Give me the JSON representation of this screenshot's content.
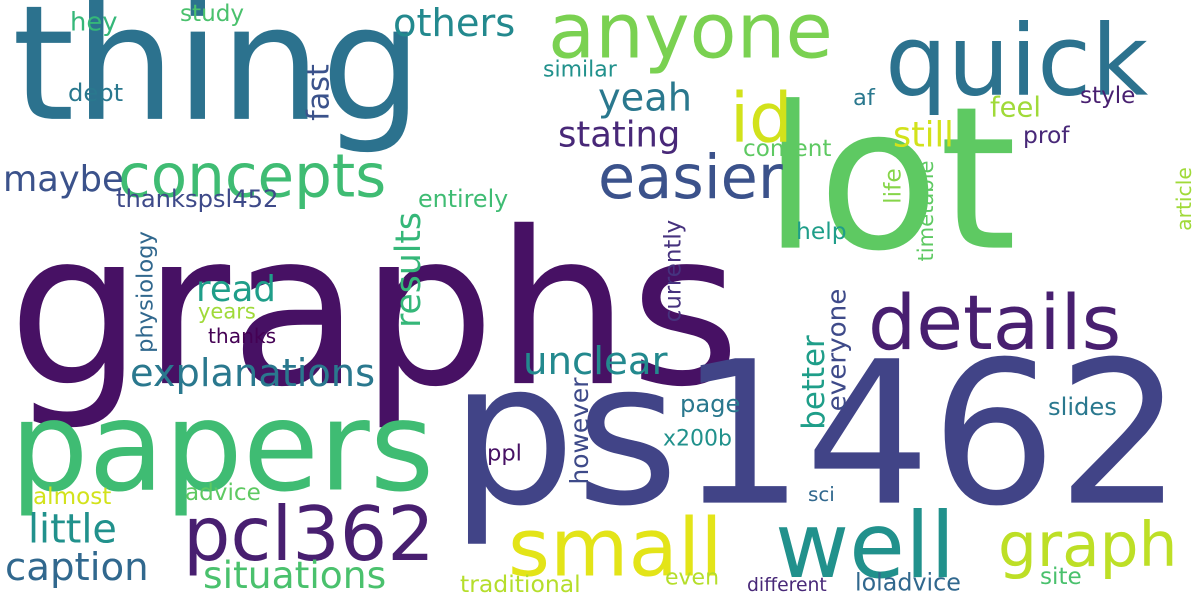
{
  "words": [
    {
      "id": "graphs",
      "text": "graphs",
      "color": "#471164"
    },
    {
      "id": "lot",
      "text": "lot",
      "color": "#5ec962"
    },
    {
      "id": "ps1462",
      "text": "ps1462",
      "color": "#414487"
    },
    {
      "id": "thing",
      "text": "thing",
      "color": "#2c728e"
    },
    {
      "id": "papers",
      "text": "papers",
      "color": "#3fbc73"
    },
    {
      "id": "quick",
      "text": "quick",
      "color": "#2c728e"
    },
    {
      "id": "anyone",
      "text": "anyone",
      "color": "#7ad151"
    },
    {
      "id": "details",
      "text": "details",
      "color": "#481f70"
    },
    {
      "id": "pcl362",
      "text": "pcl362",
      "color": "#481f70"
    },
    {
      "id": "well",
      "text": "well",
      "color": "#21918c"
    },
    {
      "id": "small",
      "text": "small",
      "color": "#e3e418"
    },
    {
      "id": "graph",
      "text": "graph",
      "color": "#bddf26"
    },
    {
      "id": "concepts",
      "text": "concepts",
      "color": "#3fbc73"
    },
    {
      "id": "easier",
      "text": "easier",
      "color": "#3b528b"
    },
    {
      "id": "id",
      "text": "id",
      "color": "#d2e21b"
    },
    {
      "id": "explanations",
      "text": "explanations",
      "color": "#2a788e"
    },
    {
      "id": "unclear",
      "text": "unclear",
      "color": "#23898e"
    },
    {
      "id": "situations",
      "text": "situations",
      "color": "#4ac16d"
    },
    {
      "id": "caption",
      "text": "caption",
      "color": "#31688e"
    },
    {
      "id": "little",
      "text": "little",
      "color": "#21918c"
    },
    {
      "id": "others",
      "text": "others",
      "color": "#23898e"
    },
    {
      "id": "yeah",
      "text": "yeah",
      "color": "#2a788e"
    },
    {
      "id": "stating",
      "text": "stating",
      "color": "#482878"
    },
    {
      "id": "fast",
      "text": "fast",
      "color": "#3b528b"
    },
    {
      "id": "feel",
      "text": "feel",
      "color": "#a0da39"
    },
    {
      "id": "still",
      "text": "still",
      "color": "#d2e21b"
    },
    {
      "id": "article",
      "text": "article",
      "color": "#a0da39"
    },
    {
      "id": "maybe",
      "text": "maybe",
      "color": "#3b528b"
    },
    {
      "id": "read",
      "text": "read",
      "color": "#1f9e89"
    },
    {
      "id": "results",
      "text": "results",
      "color": "#35b779"
    },
    {
      "id": "better",
      "text": "better",
      "color": "#1f9e89"
    },
    {
      "id": "hey",
      "text": "hey",
      "color": "#35b779"
    },
    {
      "id": "study",
      "text": "study",
      "color": "#4ac16d"
    },
    {
      "id": "similar",
      "text": "similar",
      "color": "#21918c"
    },
    {
      "id": "dept",
      "text": "dept",
      "color": "#2a788e"
    },
    {
      "id": "af",
      "text": "af",
      "color": "#2a788e"
    },
    {
      "id": "style",
      "text": "style",
      "color": "#481f70"
    },
    {
      "id": "prof",
      "text": "prof",
      "color": "#482878"
    },
    {
      "id": "content",
      "text": "content",
      "color": "#5ec962"
    },
    {
      "id": "thankspsl452",
      "text": "thankspsl452",
      "color": "#3e4a89"
    },
    {
      "id": "entirely",
      "text": "entirely",
      "color": "#3fbc73"
    },
    {
      "id": "help",
      "text": "help",
      "color": "#1f9e89"
    },
    {
      "id": "life",
      "text": "life",
      "color": "#86d549"
    },
    {
      "id": "timetable",
      "text": "timetable",
      "color": "#5ec962"
    },
    {
      "id": "physiology",
      "text": "physiology",
      "color": "#31688e"
    },
    {
      "id": "years",
      "text": "years",
      "color": "#a0da39"
    },
    {
      "id": "thanks",
      "text": "thanks",
      "color": "#440154"
    },
    {
      "id": "currently",
      "text": "currently",
      "color": "#46327e"
    },
    {
      "id": "everyone",
      "text": "everyone",
      "color": "#3e4a89"
    },
    {
      "id": "page",
      "text": "page",
      "color": "#2a788e"
    },
    {
      "id": "slides",
      "text": "slides",
      "color": "#2a788e"
    },
    {
      "id": "however",
      "text": "however",
      "color": "#3e4a89"
    },
    {
      "id": "x200b",
      "text": "x200b",
      "color": "#21918c"
    },
    {
      "id": "ppl",
      "text": "ppl",
      "color": "#471164"
    },
    {
      "id": "almost",
      "text": "almost",
      "color": "#d2e21b"
    },
    {
      "id": "advice",
      "text": "advice",
      "color": "#5ec962"
    },
    {
      "id": "sci",
      "text": "sci",
      "color": "#31688e"
    },
    {
      "id": "traditional",
      "text": "traditional",
      "color": "#b5de2b"
    },
    {
      "id": "even",
      "text": "even",
      "color": "#b5de2b"
    },
    {
      "id": "different",
      "text": "different",
      "color": "#482878"
    },
    {
      "id": "loladvice",
      "text": "loladvice",
      "color": "#31688e"
    },
    {
      "id": "site",
      "text": "site",
      "color": "#4ac16d"
    }
  ]
}
